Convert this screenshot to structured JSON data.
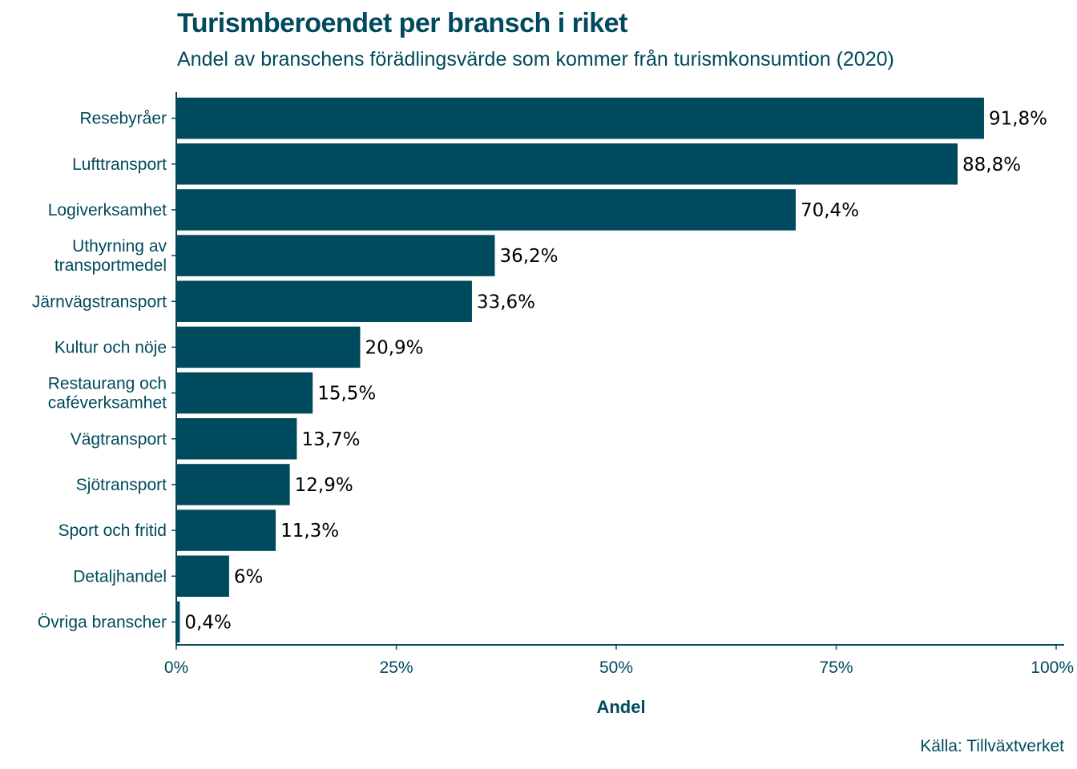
{
  "title": "Turismberoendet per bransch i riket",
  "subtitle": "Andel av branschens förädlingsvärde som kommer från turismkonsumtion (2020)",
  "source": "Källa: Tillväxtverket",
  "colors": {
    "bar": "#004a5d",
    "text": "#004a5d",
    "value_label": "#000000"
  },
  "chart_data": {
    "type": "bar",
    "orientation": "horizontal",
    "xlabel": "Andel",
    "ylabel": "",
    "xlim": [
      0,
      100
    ],
    "x_ticks": [
      0,
      25,
      50,
      75,
      100
    ],
    "x_tick_labels": [
      "0%",
      "25%",
      "50%",
      "75%",
      "100%"
    ],
    "grid": false,
    "categories": [
      [
        "Resebyråer"
      ],
      [
        "Lufttransport"
      ],
      [
        "Logiverksamhet"
      ],
      [
        "Uthyrning av",
        "transportmedel"
      ],
      [
        "Järnvägstransport"
      ],
      [
        "Kultur och nöje"
      ],
      [
        "Restaurang och",
        "caféverksamhet"
      ],
      [
        "Vägtransport"
      ],
      [
        "Sjötransport"
      ],
      [
        "Sport och fritid"
      ],
      [
        "Detaljhandel"
      ],
      [
        "Övriga branscher"
      ]
    ],
    "values": [
      91.8,
      88.8,
      70.4,
      36.2,
      33.6,
      20.9,
      15.5,
      13.7,
      12.9,
      11.3,
      6,
      0.4
    ],
    "value_labels": [
      "91,8%",
      "88,8%",
      "70,4%",
      "36,2%",
      "33,6%",
      "20,9%",
      "15,5%",
      "13,7%",
      "12,9%",
      "11,3%",
      "6%",
      "0,4%"
    ]
  }
}
